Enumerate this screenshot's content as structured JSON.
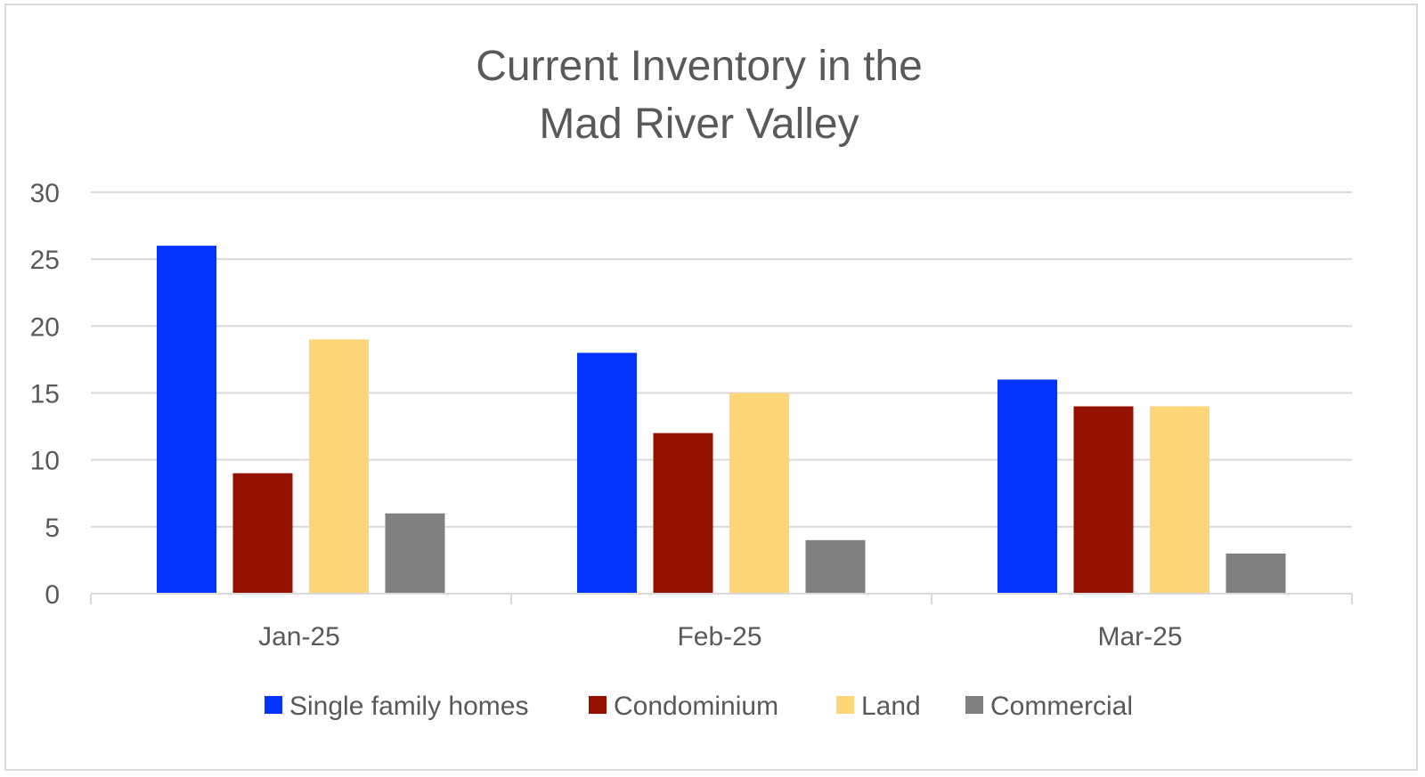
{
  "chart_data": {
    "type": "bar",
    "title_lines": [
      "Current Inventory in the",
      "Mad River Valley"
    ],
    "categories": [
      "Jan-25",
      "Feb-25",
      "Mar-25"
    ],
    "series": [
      {
        "name": "Single family homes",
        "color": "#0433ff",
        "values": [
          26,
          18,
          16
        ]
      },
      {
        "name": "Condominium",
        "color": "#941100",
        "values": [
          9,
          12,
          14
        ]
      },
      {
        "name": "Land",
        "color": "#ffd579",
        "values": [
          19,
          15,
          14
        ]
      },
      {
        "name": "Commercial",
        "color": "#808080",
        "values": [
          6,
          4,
          3
        ]
      }
    ],
    "ylim": [
      0,
      30
    ],
    "yticks": [
      "0",
      "5",
      "10",
      "15",
      "20",
      "25",
      "30"
    ],
    "grid": true,
    "legend_position": "bottom",
    "colors": {
      "title": "#595959",
      "axis_text": "#595959",
      "gridline": "#d9d9d9"
    }
  }
}
